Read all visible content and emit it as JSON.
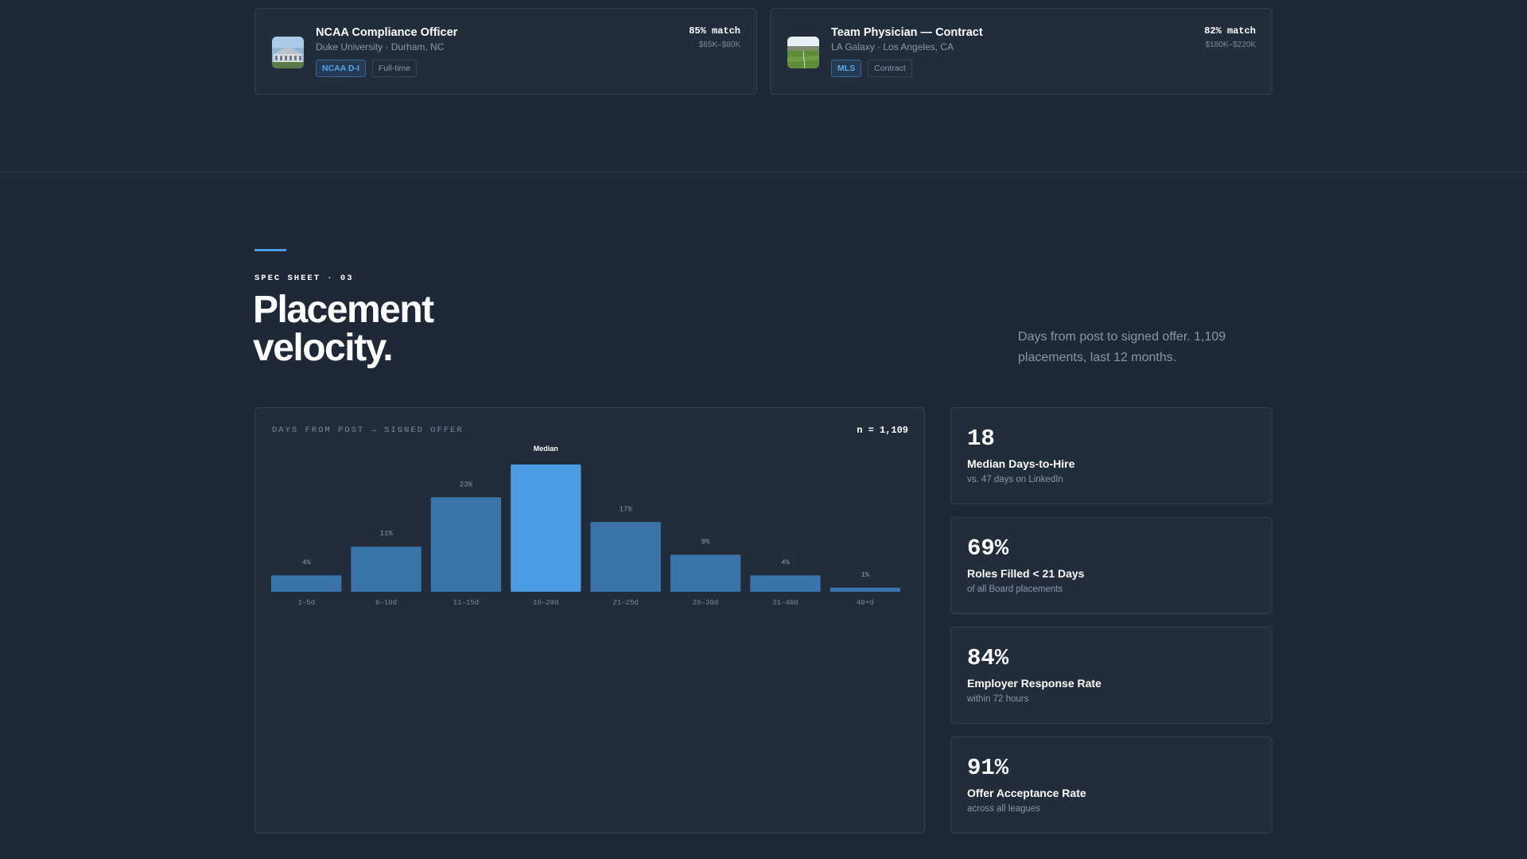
{
  "jobs": [
    {
      "title": "NCAA Compliance Officer",
      "org": "Duke University · Durham, NC",
      "match": "85% match",
      "salary": "$65K–$80K",
      "tags": [
        "NCAA D-I",
        "Full-time"
      ],
      "thumb": "stadium-photo"
    },
    {
      "title": "Team Physician — Contract",
      "org": "LA Galaxy · Los Angeles, CA",
      "match": "82% match",
      "salary": "$180K–$220K",
      "tags": [
        "MLS",
        "Contract"
      ],
      "thumb": "soccer-field-photo"
    }
  ],
  "section": {
    "eyebrow": "SPEC SHEET · 03",
    "headline_line1": "Placement",
    "headline_line2": "velocity.",
    "lede": "Days from post to signed offer. 1,109 placements, last 12 months."
  },
  "chart": {
    "label": "DAYS FROM POST → SIGNED OFFER",
    "n": "n = 1,109"
  },
  "chart_data": {
    "type": "bar",
    "categories": [
      "1–5d",
      "6–10d",
      "11–15d",
      "16–20d",
      "21–25d",
      "26–30d",
      "31–40d",
      "40+d"
    ],
    "values": [
      4,
      11,
      23,
      31,
      17,
      9,
      4,
      1
    ],
    "data_labels": [
      "4%",
      "11%",
      "23%",
      "",
      "17%",
      "9%",
      "4%",
      "1%"
    ],
    "highlight_index": 3,
    "highlight_label": "Median",
    "ylim": [
      0,
      31
    ],
    "colors": {
      "bar": "#3a74aa",
      "highlight": "#4a9be0"
    }
  },
  "stats": [
    {
      "value": "18",
      "title": "Median Days-to-Hire",
      "sub": "vs. 47 days on LinkedIn"
    },
    {
      "value": "69%",
      "title": "Roles Filled < 21 Days",
      "sub": "of all Board placements"
    },
    {
      "value": "84%",
      "title": "Employer Response Rate",
      "sub": "within 72 hours"
    },
    {
      "value": "91%",
      "title": "Offer Acceptance Rate",
      "sub": "across all leagues"
    }
  ]
}
